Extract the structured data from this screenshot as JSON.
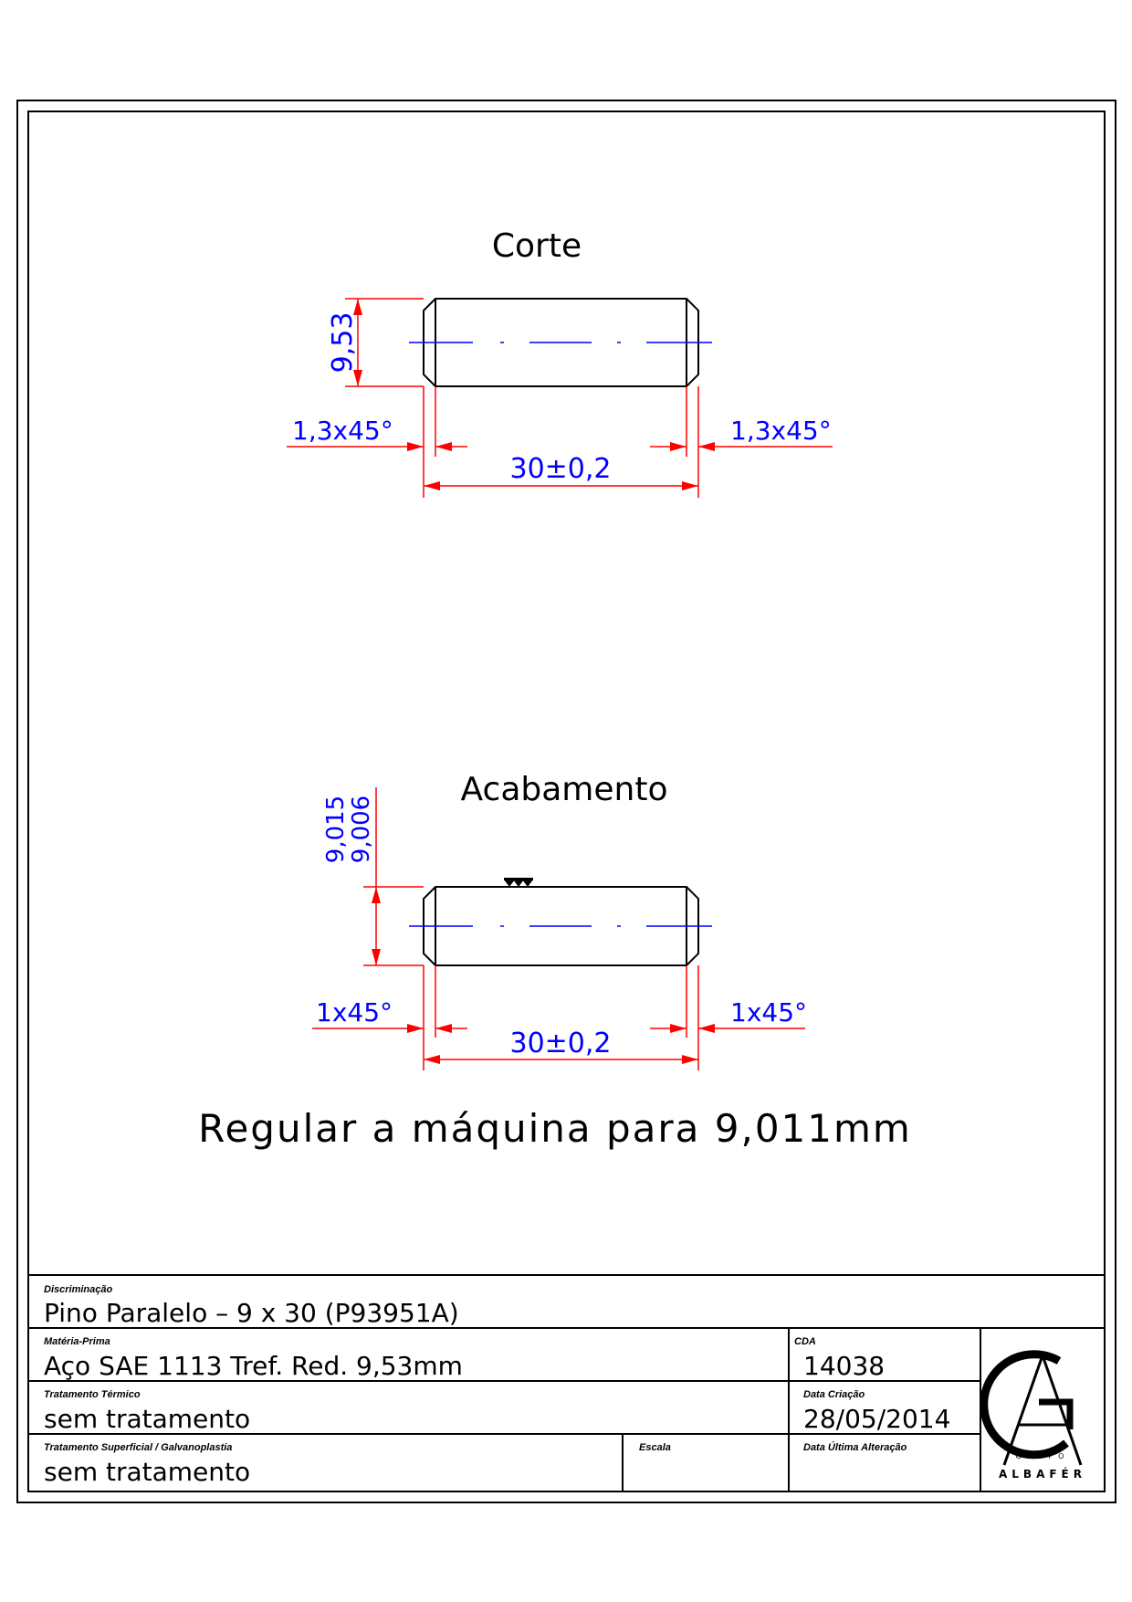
{
  "views": {
    "corte": {
      "title": "Corte",
      "dia": "9,53",
      "chamfer_left": "1,3x45°",
      "chamfer_right": "1,3x45°",
      "length": "30±0,2"
    },
    "acabamento": {
      "title": "Acabamento",
      "dia_upper": "9,015",
      "dia_lower": "9,006",
      "chamfer_left": "1x45°",
      "chamfer_right": "1x45°",
      "length": "30±0,2"
    }
  },
  "note": "Regular a máquina para 9,011mm",
  "title_block": {
    "discriminacao": {
      "label": "Discriminação",
      "value": "Pino Paralelo – 9 x 30 (P93951A)"
    },
    "materia_prima": {
      "label": "Matéria-Prima",
      "value": "Aço SAE 1113 Tref. Red. 9,53mm"
    },
    "cda": {
      "label": "CDA",
      "value": "14038"
    },
    "tratamento_termico": {
      "label": "Tratamento Térmico",
      "value": "sem tratamento"
    },
    "data_criacao": {
      "label": "Data Criação",
      "value": "28/05/2014"
    },
    "tratamento_superficial": {
      "label": "Tratamento Superficial / Galvanoplastia",
      "value": "sem tratamento"
    },
    "escala": {
      "label": "Escala",
      "value": ""
    },
    "data_ultima_alteracao": {
      "label": "Data Última Alteração",
      "value": ""
    },
    "logo": {
      "top": "GRUPO",
      "bottom": "ALBAFÉR"
    }
  },
  "colors": {
    "outline": "#000000",
    "dimension": "#ff0000",
    "text": "#0000ff"
  }
}
